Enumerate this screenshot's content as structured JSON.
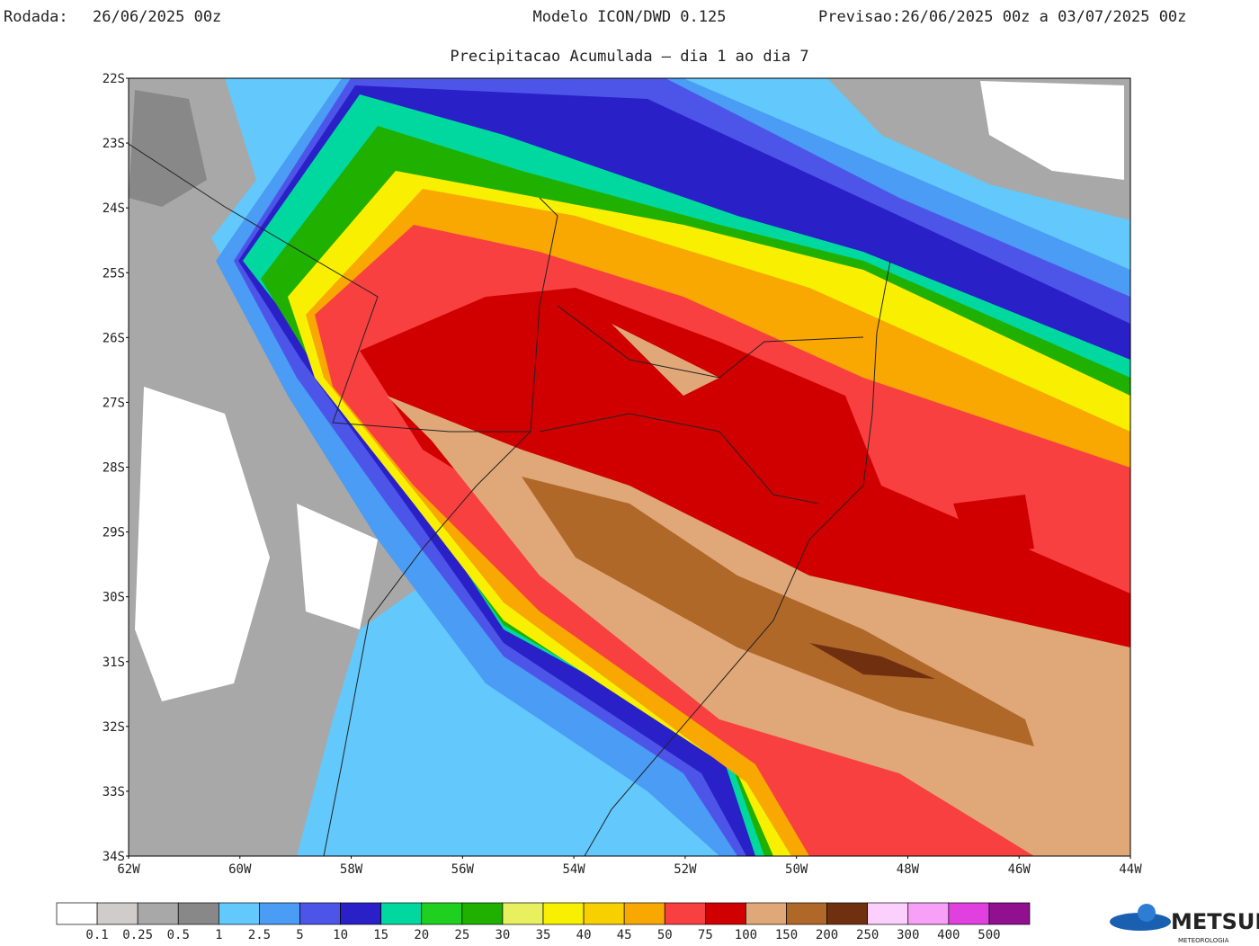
{
  "header": {
    "run_label": "Rodada:",
    "run": "26/06/2025 00z",
    "model": "Modelo ICON/DWD 0.125",
    "forecast_label": "Previsao:",
    "forecast": "26/06/2025 00z a 03/07/2025 00z",
    "subtitle": "Precipitacao Acumulada – dia 1 ao dia 7"
  },
  "lat_labels": [
    "22S",
    "23S",
    "24S",
    "25S",
    "26S",
    "27S",
    "28S",
    "29S",
    "30S",
    "31S",
    "32S",
    "33S",
    "34S"
  ],
  "lon_labels": [
    "62W",
    "60W",
    "58W",
    "56W",
    "54W",
    "52W",
    "50W",
    "48W",
    "46W",
    "44W"
  ],
  "colorbar": {
    "labels": [
      0.1,
      0.25,
      0.5,
      1,
      2.5,
      5,
      10,
      15,
      20,
      25,
      30,
      35,
      40,
      45,
      50,
      75,
      100,
      150,
      200,
      250,
      300,
      400,
      500
    ],
    "colors": [
      "#ffffff",
      "#d0cccc",
      "#a8a8a8",
      "#888888",
      "#63c8fb",
      "#4a9cf5",
      "#4d55e8",
      "#2a20c8",
      "#00d8a0",
      "#20d020",
      "#20b000",
      "#e8f060",
      "#f8f000",
      "#f8d000",
      "#f8a800",
      "#f84040",
      "#d00000",
      "#e0a878",
      "#b06828",
      "#703010",
      "#fcd0fc",
      "#f8a0f8",
      "#e040e0",
      "#901090"
    ]
  },
  "logo": {
    "name": "METSUL",
    "tagline": "METEOROLOGIA"
  }
}
